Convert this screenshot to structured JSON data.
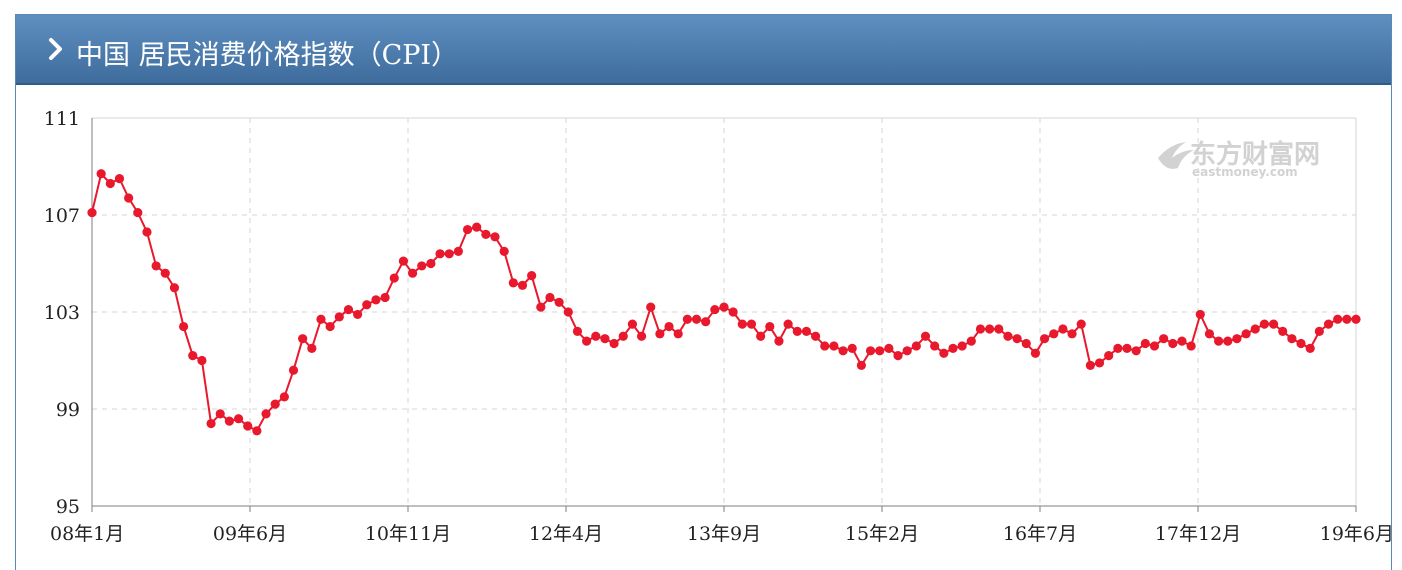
{
  "header": {
    "title": "中国 居民消费价格指数（CPI）"
  },
  "watermark": {
    "brand": "东方财富网",
    "domain": "eastmoney.com"
  },
  "colors": {
    "line": "#e8192c",
    "header": "#4a7aab",
    "grid": "#d5d5d5"
  },
  "chart_data": {
    "type": "line",
    "title": "中国 居民消费价格指数（CPI）",
    "xlabel": "",
    "ylabel": "",
    "ylim": [
      95,
      111
    ],
    "yticks": [
      95,
      99,
      103,
      107,
      111
    ],
    "x_tick_labels": [
      "08年1月",
      "09年6月",
      "10年11月",
      "12年4月",
      "13年9月",
      "15年2月",
      "16年7月",
      "17年12月",
      "19年6月"
    ],
    "x_start": "2008-01",
    "x_end": "2019-06",
    "grid": true,
    "legend": "none",
    "series": [
      {
        "marker": "circle",
        "values": [
          107.1,
          108.7,
          108.3,
          108.5,
          107.7,
          107.1,
          106.3,
          104.9,
          104.6,
          104.0,
          102.4,
          101.2,
          101.0,
          98.4,
          98.8,
          98.5,
          98.6,
          98.3,
          98.1,
          98.8,
          99.2,
          99.5,
          100.6,
          101.9,
          101.5,
          102.7,
          102.4,
          102.8,
          103.1,
          102.9,
          103.3,
          103.5,
          103.6,
          104.4,
          105.1,
          104.6,
          104.9,
          105.0,
          105.4,
          105.4,
          105.5,
          106.4,
          106.5,
          106.2,
          106.1,
          105.5,
          104.2,
          104.1,
          104.5,
          103.2,
          103.6,
          103.4,
          103.0,
          102.2,
          101.8,
          102.0,
          101.9,
          101.7,
          102.0,
          102.5,
          102.0,
          103.2,
          102.1,
          102.4,
          102.1,
          102.7,
          102.7,
          102.6,
          103.1,
          103.2,
          103.0,
          102.5,
          102.5,
          102.0,
          102.4,
          101.8,
          102.5,
          102.2,
          102.2,
          102.0,
          101.6,
          101.6,
          101.4,
          101.5,
          100.8,
          101.4,
          101.4,
          101.5,
          101.2,
          101.4,
          101.6,
          102.0,
          101.6,
          101.3,
          101.5,
          101.6,
          101.8,
          102.3,
          102.3,
          102.3,
          102.0,
          101.9,
          101.7,
          101.3,
          101.9,
          102.1,
          102.3,
          102.1,
          102.5,
          100.8,
          100.9,
          101.2,
          101.5,
          101.5,
          101.4,
          101.7,
          101.6,
          101.9,
          101.7,
          101.8,
          101.6,
          102.9,
          102.1,
          101.8,
          101.8,
          101.9,
          102.1,
          102.3,
          102.5,
          102.5,
          102.2,
          101.9,
          101.7,
          101.5,
          102.2,
          102.5,
          102.7,
          102.7,
          102.7
        ]
      }
    ]
  }
}
